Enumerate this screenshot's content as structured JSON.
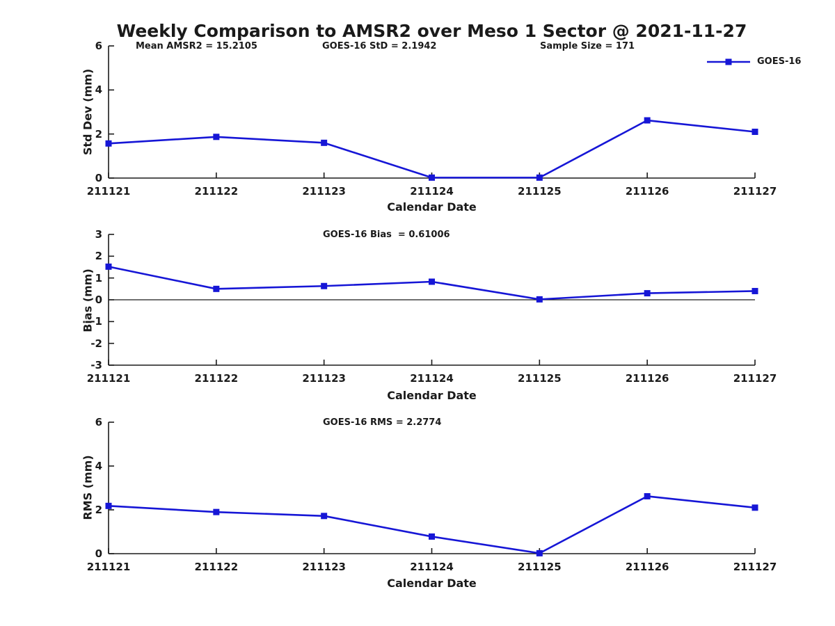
{
  "title": "Weekly Comparison to AMSR2 over Meso 1 Sector @ 2021-11-27",
  "header_annotations": {
    "mean_amsr2": "Mean AMSR2 = 15.2105",
    "goes16_std": "GOES-16 StD = 2.1942",
    "sample_size": "Sample Size = 171"
  },
  "legend": {
    "label": "GOES-16",
    "position": "top-right"
  },
  "colors": {
    "series": "#1616d6",
    "axis": "#1a1a1a",
    "text": "#1a1a1a"
  },
  "chart_data": [
    {
      "type": "line",
      "title": "",
      "ylabel": "Std Dev (mm)",
      "xlabel": "Calendar Date",
      "categories": [
        "211121",
        "211122",
        "211123",
        "211124",
        "211125",
        "211126",
        "211127"
      ],
      "series": [
        {
          "name": "GOES-16",
          "values": [
            1.57,
            1.87,
            1.6,
            0.02,
            0.02,
            2.62,
            2.1
          ]
        }
      ],
      "ylim": [
        0,
        6
      ],
      "ytick_values": [
        0,
        2,
        4,
        6
      ],
      "ytick_labels": [
        "0",
        "2",
        "4",
        "6"
      ],
      "zero_line": false,
      "grid": false,
      "marker": "square"
    },
    {
      "type": "line",
      "title": "GOES-16 Bias  = 0.61006",
      "ylabel": "Bias (mm)",
      "xlabel": "Calendar Date",
      "categories": [
        "211121",
        "211122",
        "211123",
        "211124",
        "211125",
        "211126",
        "211127"
      ],
      "series": [
        {
          "name": "GOES-16",
          "values": [
            1.52,
            0.5,
            0.63,
            0.83,
            0.02,
            0.3,
            0.4
          ]
        }
      ],
      "ylim": [
        -3,
        3
      ],
      "ytick_values": [
        -3,
        -2,
        -1,
        0,
        1,
        2,
        3
      ],
      "ytick_labels": [
        "-3",
        "-2",
        "-1",
        "0",
        "1",
        "2",
        "3"
      ],
      "zero_line": true,
      "grid": false,
      "marker": "square"
    },
    {
      "type": "line",
      "title": "GOES-16 RMS = 2.2774",
      "ylabel": "RMS (mm)",
      "xlabel": "Calendar Date",
      "categories": [
        "211121",
        "211122",
        "211123",
        "211124",
        "211125",
        "211126",
        "211127"
      ],
      "series": [
        {
          "name": "GOES-16",
          "values": [
            2.18,
            1.9,
            1.72,
            0.78,
            0.02,
            2.62,
            2.1
          ]
        }
      ],
      "ylim": [
        0,
        6
      ],
      "ytick_values": [
        0,
        2,
        4,
        6
      ],
      "ytick_labels": [
        "0",
        "2",
        "4",
        "6"
      ],
      "zero_line": false,
      "grid": false,
      "marker": "square"
    }
  ]
}
